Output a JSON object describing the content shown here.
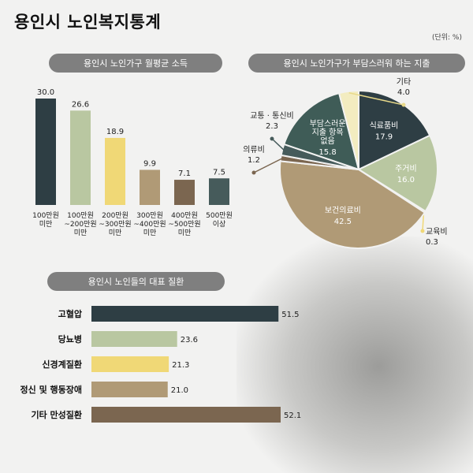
{
  "title": "용인시 노인복지통계",
  "unit_note": "(단위: %)",
  "panels": {
    "income": "용인시 노인가구 월평균 소득",
    "spending": "용인시 노인가구가 부담스러워 하는 지출",
    "disease": "용인시 노인들의 대표 질환"
  },
  "chart_data": [
    {
      "type": "bar",
      "title": "용인시 노인가구 월평균 소득",
      "categories": [
        [
          "100만원",
          "미만"
        ],
        [
          "100만원",
          "~200만원",
          "미만"
        ],
        [
          "200만원",
          "~300만원",
          "미만"
        ],
        [
          "300만원",
          "~400만원",
          "미만"
        ],
        [
          "400만원",
          "~500만원",
          "미만"
        ],
        [
          "500만원",
          "이상"
        ]
      ],
      "values": [
        30.0,
        26.6,
        18.9,
        9.9,
        7.1,
        7.5
      ],
      "value_labels": [
        "30.0",
        "26.6",
        "18.9",
        "9.9",
        "7.1",
        "7.5"
      ],
      "colors": [
        "#2e3e44",
        "#b9c7a1",
        "#f0d876",
        "#b09a76",
        "#7b6650",
        "#465b5b"
      ],
      "ylim": [
        0,
        30
      ]
    },
    {
      "type": "pie",
      "title": "용인시 노인가구가 부담스러워 하는 지출",
      "slices": [
        {
          "label": [
            "식료품비"
          ],
          "value": 17.9,
          "value_label": "17.9",
          "color": "#2e3e44",
          "inside": true
        },
        {
          "label": [
            "주거비"
          ],
          "value": 16.0,
          "value_label": "16.0",
          "color": "#b9c7a1",
          "inside": true
        },
        {
          "label": [
            "교육비"
          ],
          "value": 0.3,
          "value_label": "0.3",
          "color": "#f0d876",
          "inside": false
        },
        {
          "label": [
            "보건의료비"
          ],
          "value": 42.5,
          "value_label": "42.5",
          "color": "#b09a76",
          "inside": true
        },
        {
          "label": [
            "의류비"
          ],
          "value": 1.2,
          "value_label": "1.2",
          "color": "#7b6650",
          "inside": false
        },
        {
          "label": [
            "교통 · 통신비"
          ],
          "value": 2.3,
          "value_label": "2.3",
          "color": "#465b5b",
          "inside": false
        },
        {
          "label": [
            "부담스러운",
            "지출 항목",
            "없음"
          ],
          "value": 15.8,
          "value_label": "15.8",
          "color": "#3f5c57",
          "inside": true
        },
        {
          "label": [
            "기타"
          ],
          "value": 4.0,
          "value_label": "4.0",
          "color": "#f3ecc0",
          "inside": false
        }
      ]
    },
    {
      "type": "bar",
      "orientation": "horizontal",
      "title": "용인시 노인들의 대표 질환",
      "categories": [
        "고혈압",
        "당뇨병",
        "신경계질환",
        "정신 및 행동장애",
        "기타 만성질환"
      ],
      "values": [
        51.5,
        23.6,
        21.3,
        21.0,
        52.1
      ],
      "value_labels": [
        "51.5",
        "23.6",
        "21.3",
        "21.0",
        "52.1"
      ],
      "colors": [
        "#2e3e44",
        "#b9c7a1",
        "#f0d876",
        "#b09a76",
        "#7b6650"
      ]
    }
  ]
}
